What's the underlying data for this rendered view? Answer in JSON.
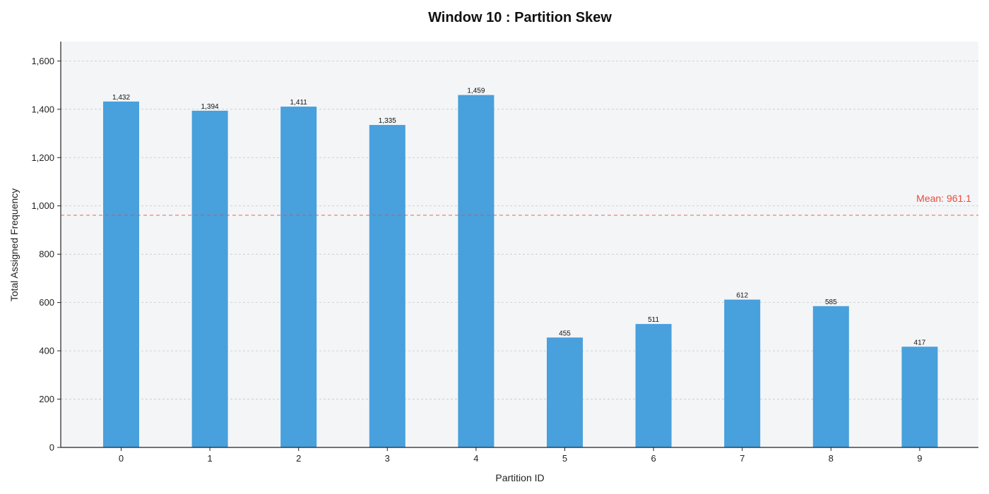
{
  "chart_data": {
    "type": "bar",
    "title": "Window 10 : Partition Skew",
    "xlabel": "Partition ID",
    "ylabel": "Total Assigned Frequency",
    "categories": [
      "0",
      "1",
      "2",
      "3",
      "4",
      "5",
      "6",
      "7",
      "8",
      "9"
    ],
    "values": [
      1432,
      1394,
      1411,
      1335,
      1459,
      455,
      511,
      612,
      585,
      417
    ],
    "value_labels": [
      "1,432",
      "1,394",
      "1,411",
      "1,335",
      "1,459",
      "455",
      "511",
      "612",
      "585",
      "417"
    ],
    "ylim": [
      0,
      1680
    ],
    "yticks": [
      0,
      200,
      400,
      600,
      800,
      1000,
      1200,
      1400,
      1600
    ],
    "ytick_labels": [
      "0",
      "200",
      "400",
      "600",
      "800",
      "1,000",
      "1,200",
      "1,400",
      "1,600"
    ],
    "grid": "horizontal dashed",
    "mean": {
      "value": 961.1,
      "label": "Mean: 961.1",
      "color": "#e74c3c"
    },
    "colors": {
      "bar": "#48a0dc",
      "plot_background": "#f4f5f7",
      "grid": "#c8c8c8",
      "axis": "#222222"
    }
  }
}
